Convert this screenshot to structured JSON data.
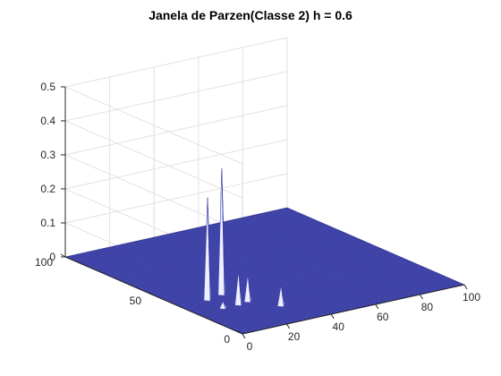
{
  "chart_data": {
    "type": "surface",
    "title": "Janela de Parzen(Classe 2) h = 0.6",
    "xlabel": "",
    "ylabel": "",
    "zlabel": "",
    "xlim": [
      0,
      100
    ],
    "ylim": [
      0,
      100
    ],
    "zlim": [
      0,
      0.5
    ],
    "x_ticks": [
      0,
      20,
      40,
      60,
      80,
      100
    ],
    "x_tick_labels": [
      "0",
      "20",
      "40",
      "60",
      "80",
      "100"
    ],
    "y_ticks": [
      0,
      50,
      100
    ],
    "y_tick_labels": [
      "0",
      "50",
      "100"
    ],
    "z_ticks": [
      0,
      0.1,
      0.2,
      0.3,
      0.4,
      0.5
    ],
    "z_tick_labels": [
      "0",
      "0.1",
      "0.2",
      "0.3",
      "0.4",
      "0.5"
    ],
    "grid": true,
    "surface_color": "#3b3fa3",
    "edge_color": "#2a2e8f",
    "peaks": [
      {
        "x": 13,
        "y": 36,
        "z": 0.3
      },
      {
        "x": 21,
        "y": 38,
        "z": 0.37
      },
      {
        "x": 19,
        "y": 26,
        "z": 0.1
      },
      {
        "x": 24,
        "y": 27,
        "z": 0.08
      },
      {
        "x": 31,
        "y": 17,
        "z": 0.06
      },
      {
        "x": 12,
        "y": 26,
        "z": 0.02
      }
    ]
  }
}
